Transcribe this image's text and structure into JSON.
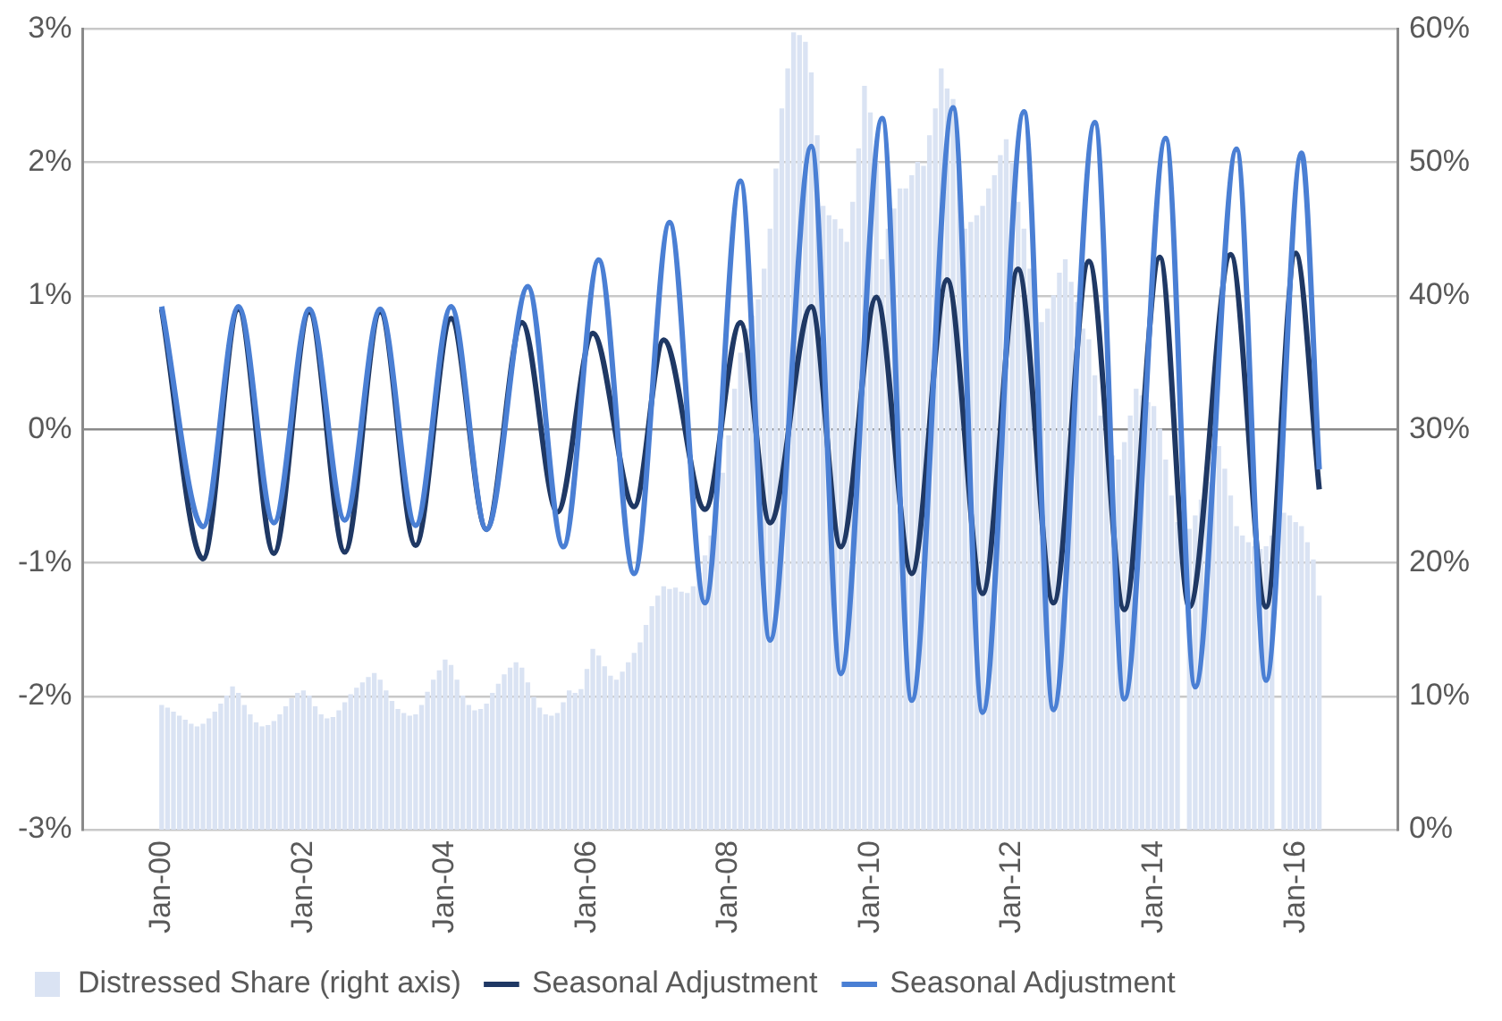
{
  "chart_data": {
    "type": "line",
    "x": [
      "2000-01",
      "2000-02",
      "2000-03",
      "2000-04",
      "2000-05",
      "2000-06",
      "2000-07",
      "2000-08",
      "2000-09",
      "2000-10",
      "2000-11",
      "2000-12",
      "2001-01",
      "2001-02",
      "2001-03",
      "2001-04",
      "2001-05",
      "2001-06",
      "2001-07",
      "2001-08",
      "2001-09",
      "2001-10",
      "2001-11",
      "2001-12",
      "2002-01",
      "2002-02",
      "2002-03",
      "2002-04",
      "2002-05",
      "2002-06",
      "2002-07",
      "2002-08",
      "2002-09",
      "2002-10",
      "2002-11",
      "2002-12",
      "2003-01",
      "2003-02",
      "2003-03",
      "2003-04",
      "2003-05",
      "2003-06",
      "2003-07",
      "2003-08",
      "2003-09",
      "2003-10",
      "2003-11",
      "2003-12",
      "2004-01",
      "2004-02",
      "2004-03",
      "2004-04",
      "2004-05",
      "2004-06",
      "2004-07",
      "2004-08",
      "2004-09",
      "2004-10",
      "2004-11",
      "2004-12",
      "2005-01",
      "2005-02",
      "2005-03",
      "2005-04",
      "2005-05",
      "2005-06",
      "2005-07",
      "2005-08",
      "2005-09",
      "2005-10",
      "2005-11",
      "2005-12",
      "2006-01",
      "2006-02",
      "2006-03",
      "2006-04",
      "2006-05",
      "2006-06",
      "2006-07",
      "2006-08",
      "2006-09",
      "2006-10",
      "2006-11",
      "2006-12",
      "2007-01",
      "2007-02",
      "2007-03",
      "2007-04",
      "2007-05",
      "2007-06",
      "2007-07",
      "2007-08",
      "2007-09",
      "2007-10",
      "2007-11",
      "2007-12",
      "2008-01",
      "2008-02",
      "2008-03",
      "2008-04",
      "2008-05",
      "2008-06",
      "2008-07",
      "2008-08",
      "2008-09",
      "2008-10",
      "2008-11",
      "2008-12",
      "2009-01",
      "2009-02",
      "2009-03",
      "2009-04",
      "2009-05",
      "2009-06",
      "2009-07",
      "2009-08",
      "2009-09",
      "2009-10",
      "2009-11",
      "2009-12",
      "2010-01",
      "2010-02",
      "2010-03",
      "2010-04",
      "2010-05",
      "2010-06",
      "2010-07",
      "2010-08",
      "2010-09",
      "2010-10",
      "2010-11",
      "2010-12",
      "2011-01",
      "2011-02",
      "2011-03",
      "2011-04",
      "2011-05",
      "2011-06",
      "2011-07",
      "2011-08",
      "2011-09",
      "2011-10",
      "2011-11",
      "2011-12",
      "2012-01",
      "2012-02",
      "2012-03",
      "2012-04",
      "2012-05",
      "2012-06",
      "2012-07",
      "2012-08",
      "2012-09",
      "2012-10",
      "2012-11",
      "2012-12",
      "2013-01",
      "2013-02",
      "2013-03",
      "2013-04",
      "2013-05",
      "2013-06",
      "2013-07",
      "2013-08",
      "2013-09",
      "2013-10",
      "2013-11",
      "2013-12",
      "2014-01",
      "2014-02",
      "2014-03",
      "2014-04",
      "2014-05",
      "2014-06",
      "2014-07",
      "2014-08",
      "2014-09",
      "2014-10",
      "2014-11",
      "2014-12",
      "2015-01",
      "2015-02",
      "2015-03",
      "2015-04",
      "2015-05",
      "2015-06",
      "2015-07",
      "2015-08",
      "2015-09",
      "2015-10",
      "2015-11",
      "2015-12",
      "2016-01",
      "2016-02",
      "2016-03",
      "2016-04",
      "2016-05"
    ],
    "series": [
      {
        "name": "Distressed Share (right axis)",
        "type": "bar",
        "axis": "y2",
        "color": "#dae3f3",
        "values": [
          9.3,
          9.1,
          8.8,
          8.5,
          8.2,
          7.9,
          7.7,
          7.9,
          8.3,
          8.8,
          9.4,
          10.0,
          10.7,
          10.2,
          9.3,
          8.6,
          8.0,
          7.7,
          7.8,
          8.1,
          8.6,
          9.2,
          9.8,
          10.2,
          10.4,
          10.0,
          9.2,
          8.6,
          8.3,
          8.4,
          8.9,
          9.5,
          10.1,
          10.6,
          11.0,
          11.4,
          11.7,
          11.2,
          10.4,
          9.6,
          9.0,
          8.7,
          8.5,
          8.6,
          9.3,
          10.3,
          11.2,
          11.9,
          12.7,
          12.3,
          11.2,
          10.0,
          9.3,
          8.9,
          9.0,
          9.4,
          10.2,
          10.9,
          11.6,
          12.1,
          12.5,
          12.1,
          11.0,
          9.9,
          9.1,
          8.6,
          8.5,
          8.7,
          9.5,
          10.4,
          10.2,
          10.5,
          12.0,
          13.5,
          13.0,
          12.2,
          11.5,
          11.2,
          11.8,
          12.5,
          13.2,
          14.0,
          15.3,
          16.7,
          17.5,
          18.2,
          18.0,
          18.1,
          17.8,
          17.7,
          18.2,
          19.2,
          20.5,
          22.0,
          24.3,
          26.7,
          29.5,
          33.0,
          35.7,
          37.5,
          38.5,
          39.7,
          42.0,
          45.0,
          49.5,
          54.0,
          57.0,
          59.7,
          59.5,
          59.0,
          56.7,
          52.0,
          46.7,
          46.0,
          45.7,
          45.0,
          44.0,
          47.0,
          51.0,
          55.7,
          53.7,
          50.0,
          42.7,
          45.0,
          46.5,
          48.0,
          48.0,
          49.0,
          50.0,
          49.7,
          52.0,
          54.0,
          57.0,
          55.5,
          54.7,
          50.0,
          45.0,
          45.5,
          46.0,
          46.7,
          48.0,
          49.0,
          50.5,
          51.7,
          50.0,
          47.0,
          45.0,
          42.0,
          38.7,
          38.0,
          39.0,
          40.0,
          41.7,
          42.7,
          41.0,
          39.5,
          37.5,
          36.7,
          34.0,
          31.0,
          29.0,
          28.0,
          27.7,
          29.0,
          31.0,
          33.0,
          32.5,
          32.0,
          31.7,
          30.0,
          27.7,
          25.0,
          23.0,
          null,
          22.5,
          23.5,
          24.7,
          26.0,
          27.5,
          28.7,
          27.0,
          25.0,
          22.7,
          22.0,
          21.5,
          21.2,
          21.0,
          21.2,
          22.0,
          null,
          23.7,
          23.5,
          23.0,
          22.7,
          21.5,
          20.2,
          17.5
        ]
      },
      {
        "name": "Seasonal Adjustment",
        "color": "#1f3864",
        "x": [
          "2000-01",
          "2000-08",
          "2001-02",
          "2001-08",
          "2002-02",
          "2002-08",
          "2003-02",
          "2003-08",
          "2004-02",
          "2004-08",
          "2005-02",
          "2005-08",
          "2006-02",
          "2006-09",
          "2007-02",
          "2007-09",
          "2008-03",
          "2008-08",
          "2009-03",
          "2009-08",
          "2010-02",
          "2010-08",
          "2011-02",
          "2011-08",
          "2012-02",
          "2012-08",
          "2013-02",
          "2013-08",
          "2014-02",
          "2014-07",
          "2015-02",
          "2015-08",
          "2016-01",
          "2016-05"
        ],
        "values": [
          0.9,
          -0.97,
          0.9,
          -0.93,
          0.88,
          -0.92,
          0.88,
          -0.87,
          0.83,
          -0.75,
          0.8,
          -0.62,
          0.72,
          -0.58,
          0.67,
          -0.6,
          0.8,
          -0.7,
          0.92,
          -0.88,
          0.99,
          -1.08,
          1.12,
          -1.23,
          1.2,
          -1.3,
          1.26,
          -1.35,
          1.29,
          -1.33,
          1.31,
          -1.33,
          1.32,
          -0.45
        ]
      },
      {
        "name": "Seasonal Adjustment",
        "color": "#4a7fd4",
        "x": [
          "2000-01",
          "2000-08",
          "2001-02",
          "2001-08",
          "2002-02",
          "2002-08",
          "2003-02",
          "2003-08",
          "2004-02",
          "2004-08",
          "2005-03",
          "2005-09",
          "2006-03",
          "2006-09",
          "2007-03",
          "2007-09",
          "2008-03",
          "2008-08",
          "2009-03",
          "2009-08",
          "2010-03",
          "2010-08",
          "2011-03",
          "2011-08",
          "2012-03",
          "2012-08",
          "2013-03",
          "2013-08",
          "2014-03",
          "2014-08",
          "2015-03",
          "2015-08",
          "2016-02",
          "2016-05"
        ],
        "values": [
          0.92,
          -0.73,
          0.92,
          -0.7,
          0.9,
          -0.68,
          0.9,
          -0.72,
          0.92,
          -0.75,
          1.07,
          -0.88,
          1.27,
          -1.08,
          1.55,
          -1.3,
          1.86,
          -1.58,
          2.12,
          -1.83,
          2.33,
          -2.03,
          2.41,
          -2.12,
          2.38,
          -2.1,
          2.3,
          -2.02,
          2.18,
          -1.93,
          2.1,
          -1.88,
          2.07,
          -0.3
        ]
      }
    ],
    "xlim": [
      "1999-12",
      "2016-06"
    ],
    "xticks": [
      {
        "value": "2000-01",
        "label": "Jan-00"
      },
      {
        "value": "2002-01",
        "label": "Jan-02"
      },
      {
        "value": "2004-01",
        "label": "Jan-04"
      },
      {
        "value": "2006-01",
        "label": "Jan-06"
      },
      {
        "value": "2008-01",
        "label": "Jan-08"
      },
      {
        "value": "2010-01",
        "label": "Jan-10"
      },
      {
        "value": "2012-01",
        "label": "Jan-12"
      },
      {
        "value": "2014-01",
        "label": "Jan-14"
      },
      {
        "value": "2016-01",
        "label": "Jan-16"
      }
    ],
    "ylim": [
      -3,
      3
    ],
    "yticks": [
      {
        "value": -3,
        "label": "-3%"
      },
      {
        "value": -2,
        "label": "-2%"
      },
      {
        "value": -1,
        "label": "-1%"
      },
      {
        "value": 0,
        "label": "0%"
      },
      {
        "value": 1,
        "label": "1%"
      },
      {
        "value": 2,
        "label": "2%"
      },
      {
        "value": 3,
        "label": "3%"
      }
    ],
    "y2lim": [
      0,
      60
    ],
    "y2ticks": [
      {
        "value": 0,
        "label": "0%"
      },
      {
        "value": 10,
        "label": "10%"
      },
      {
        "value": 20,
        "label": "20%"
      },
      {
        "value": 30,
        "label": "30%"
      },
      {
        "value": 40,
        "label": "40%"
      },
      {
        "value": 50,
        "label": "50%"
      },
      {
        "value": 60,
        "label": "60%"
      }
    ],
    "grid": "y",
    "legend": "bottom"
  }
}
